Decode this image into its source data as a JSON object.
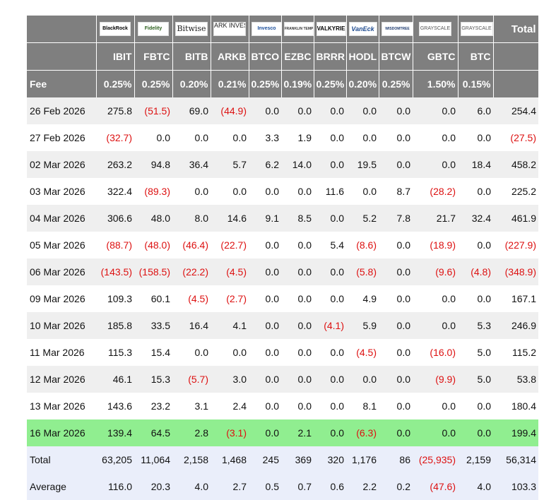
{
  "columns": [
    {
      "ticker": "IBIT",
      "fee": "0.25%",
      "logo": "BlackRock"
    },
    {
      "ticker": "FBTC",
      "fee": "0.25%",
      "logo": "Fidelity"
    },
    {
      "ticker": "BITB",
      "fee": "0.20%",
      "logo": "Bitwise"
    },
    {
      "ticker": "ARKB",
      "fee": "0.21%",
      "logo": "ARK INVEST"
    },
    {
      "ticker": "BTCO",
      "fee": "0.25%",
      "logo": "Invesco"
    },
    {
      "ticker": "EZBC",
      "fee": "0.19%",
      "logo": "FRANKLIN TEMPLETON"
    },
    {
      "ticker": "BRRR",
      "fee": "0.25%",
      "logo": "VALKYRIE"
    },
    {
      "ticker": "HODL",
      "fee": "0.20%",
      "logo": "VanEck"
    },
    {
      "ticker": "BTCW",
      "fee": "0.25%",
      "logo": "WISDOMTREE"
    },
    {
      "ticker": "GBTC",
      "fee": "1.50%",
      "logo": "GRAYSCALE"
    },
    {
      "ticker": "BTC",
      "fee": "0.15%",
      "logo": "GRAYSCALE"
    }
  ],
  "header": {
    "total_label": "Total",
    "fee_label": "Fee"
  },
  "rows": [
    {
      "date": "26 Feb 2026",
      "values": [
        "275.8",
        "(51.5)",
        "69.0",
        "(44.9)",
        "0.0",
        "0.0",
        "0.0",
        "0.0",
        "0.0",
        "0.0",
        "6.0"
      ],
      "total": "254.4"
    },
    {
      "date": "27 Feb 2026",
      "values": [
        "(32.7)",
        "0.0",
        "0.0",
        "0.0",
        "3.3",
        "1.9",
        "0.0",
        "0.0",
        "0.0",
        "0.0",
        "0.0"
      ],
      "total": "(27.5)"
    },
    {
      "date": "02 Mar 2026",
      "values": [
        "263.2",
        "94.8",
        "36.4",
        "5.7",
        "6.2",
        "14.0",
        "0.0",
        "19.5",
        "0.0",
        "0.0",
        "18.4"
      ],
      "total": "458.2"
    },
    {
      "date": "03 Mar 2026",
      "values": [
        "322.4",
        "(89.3)",
        "0.0",
        "0.0",
        "0.0",
        "0.0",
        "11.6",
        "0.0",
        "8.7",
        "(28.2)",
        "0.0"
      ],
      "total": "225.2"
    },
    {
      "date": "04 Mar 2026",
      "values": [
        "306.6",
        "48.0",
        "8.0",
        "14.6",
        "9.1",
        "8.5",
        "0.0",
        "5.2",
        "7.8",
        "21.7",
        "32.4"
      ],
      "total": "461.9"
    },
    {
      "date": "05 Mar 2026",
      "values": [
        "(88.7)",
        "(48.0)",
        "(46.4)",
        "(22.7)",
        "0.0",
        "0.0",
        "5.4",
        "(8.6)",
        "0.0",
        "(18.9)",
        "0.0"
      ],
      "total": "(227.9)"
    },
    {
      "date": "06 Mar 2026",
      "values": [
        "(143.5)",
        "(158.5)",
        "(22.2)",
        "(4.5)",
        "0.0",
        "0.0",
        "0.0",
        "(5.8)",
        "0.0",
        "(9.6)",
        "(4.8)"
      ],
      "total": "(348.9)"
    },
    {
      "date": "09 Mar 2026",
      "values": [
        "109.3",
        "60.1",
        "(4.5)",
        "(2.7)",
        "0.0",
        "0.0",
        "0.0",
        "4.9",
        "0.0",
        "0.0",
        "0.0"
      ],
      "total": "167.1"
    },
    {
      "date": "10 Mar 2026",
      "values": [
        "185.8",
        "33.5",
        "16.4",
        "4.1",
        "0.0",
        "0.0",
        "(4.1)",
        "5.9",
        "0.0",
        "0.0",
        "5.3"
      ],
      "total": "246.9"
    },
    {
      "date": "11 Mar 2026",
      "values": [
        "115.3",
        "15.4",
        "0.0",
        "0.0",
        "0.0",
        "0.0",
        "0.0",
        "(4.5)",
        "0.0",
        "(16.0)",
        "5.0"
      ],
      "total": "115.2"
    },
    {
      "date": "12 Mar 2026",
      "values": [
        "46.1",
        "15.3",
        "(5.7)",
        "3.0",
        "0.0",
        "0.0",
        "0.0",
        "0.0",
        "0.0",
        "(9.9)",
        "5.0"
      ],
      "total": "53.8"
    },
    {
      "date": "13 Mar 2026",
      "values": [
        "143.6",
        "23.2",
        "3.1",
        "2.4",
        "0.0",
        "0.0",
        "0.0",
        "8.1",
        "0.0",
        "0.0",
        "0.0"
      ],
      "total": "180.4"
    },
    {
      "date": "16 Mar 2026",
      "values": [
        "139.4",
        "64.5",
        "2.8",
        "(3.1)",
        "0.0",
        "2.1",
        "0.0",
        "(6.3)",
        "0.0",
        "0.0",
        "0.0"
      ],
      "total": "199.4",
      "highlight": true
    }
  ],
  "footer": [
    {
      "label": "Total",
      "values": [
        "63,205",
        "11,064",
        "2,158",
        "1,468",
        "245",
        "369",
        "320",
        "1,176",
        "86",
        "(25,935)",
        "2,159"
      ],
      "total": "56,314"
    },
    {
      "label": "Average",
      "values": [
        "116.0",
        "20.3",
        "4.0",
        "2.7",
        "0.5",
        "0.7",
        "0.6",
        "2.2",
        "0.2",
        "(47.6)",
        "4.0"
      ],
      "total": "103.3"
    }
  ],
  "colors": {
    "header_bg": "#7f7f7f",
    "highlight": "#90ee90",
    "stripe": "#efefef",
    "footer_bg": "#eaeefa",
    "negative": "#dd1111"
  }
}
